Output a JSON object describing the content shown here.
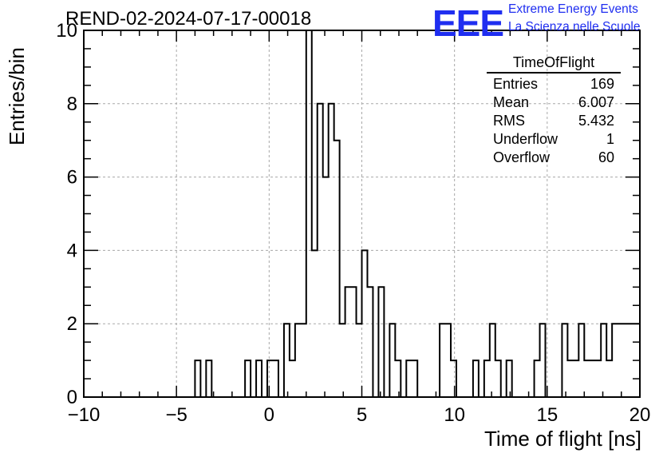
{
  "title": "REND-02-2024-07-17-00018",
  "logo": {
    "text": "EEE",
    "line1": "Extreme Energy Events",
    "line2": "La Scienza nelle Scuole"
  },
  "stats": {
    "name": "TimeOfFlight",
    "rows": [
      {
        "label": "Entries",
        "value": "169"
      },
      {
        "label": "Mean",
        "value": "6.007"
      },
      {
        "label": "RMS",
        "value": "5.432"
      },
      {
        "label": "Underflow",
        "value": "1"
      },
      {
        "label": "Overflow",
        "value": "60"
      }
    ]
  },
  "chart_data": {
    "type": "bar",
    "subtype": "histogram",
    "xlabel": "Time of flight [ns]",
    "ylabel": "Entries/bin",
    "xlim": [
      -10,
      20
    ],
    "ylim": [
      0,
      10
    ],
    "xticks": [
      -10,
      -5,
      0,
      5,
      10,
      15,
      20
    ],
    "xtick_labels": [
      "−10",
      "−5",
      "0",
      "5",
      "10",
      "15",
      "20"
    ],
    "yticks": [
      0,
      2,
      4,
      6,
      8,
      10
    ],
    "grid": true,
    "bin_width": 0.3,
    "bins": [
      {
        "x": -4.0,
        "y": 1
      },
      {
        "x": -3.7,
        "y": 0
      },
      {
        "x": -3.4,
        "y": 1
      },
      {
        "x": -1.3,
        "y": 1
      },
      {
        "x": -1.0,
        "y": 0
      },
      {
        "x": -0.7,
        "y": 1
      },
      {
        "x": -0.4,
        "y": 0
      },
      {
        "x": -0.1,
        "y": 1
      },
      {
        "x": 0.2,
        "y": 1
      },
      {
        "x": 0.5,
        "y": 0
      },
      {
        "x": 0.8,
        "y": 2
      },
      {
        "x": 1.1,
        "y": 1
      },
      {
        "x": 1.4,
        "y": 2
      },
      {
        "x": 1.7,
        "y": 2
      },
      {
        "x": 2.0,
        "y": 10
      },
      {
        "x": 2.3,
        "y": 4
      },
      {
        "x": 2.6,
        "y": 8
      },
      {
        "x": 2.9,
        "y": 6
      },
      {
        "x": 3.2,
        "y": 8
      },
      {
        "x": 3.5,
        "y": 7
      },
      {
        "x": 3.8,
        "y": 2
      },
      {
        "x": 4.1,
        "y": 3
      },
      {
        "x": 4.4,
        "y": 3
      },
      {
        "x": 4.7,
        "y": 2
      },
      {
        "x": 5.0,
        "y": 4
      },
      {
        "x": 5.3,
        "y": 3
      },
      {
        "x": 5.6,
        "y": 0
      },
      {
        "x": 5.9,
        "y": 3
      },
      {
        "x": 6.2,
        "y": 0
      },
      {
        "x": 6.5,
        "y": 2
      },
      {
        "x": 6.8,
        "y": 1
      },
      {
        "x": 7.1,
        "y": 0
      },
      {
        "x": 7.4,
        "y": 1
      },
      {
        "x": 7.7,
        "y": 1
      },
      {
        "x": 9.2,
        "y": 2
      },
      {
        "x": 9.5,
        "y": 2
      },
      {
        "x": 9.8,
        "y": 1
      },
      {
        "x": 11.0,
        "y": 1
      },
      {
        "x": 11.6,
        "y": 1
      },
      {
        "x": 11.9,
        "y": 2
      },
      {
        "x": 12.2,
        "y": 1
      },
      {
        "x": 12.5,
        "y": 0
      },
      {
        "x": 12.8,
        "y": 1
      },
      {
        "x": 14.3,
        "y": 1
      },
      {
        "x": 14.6,
        "y": 2
      },
      {
        "x": 15.8,
        "y": 2
      },
      {
        "x": 16.1,
        "y": 1
      },
      {
        "x": 16.4,
        "y": 1
      },
      {
        "x": 16.7,
        "y": 2
      },
      {
        "x": 17.0,
        "y": 1
      },
      {
        "x": 17.3,
        "y": 1
      },
      {
        "x": 17.6,
        "y": 1
      },
      {
        "x": 17.9,
        "y": 2
      },
      {
        "x": 18.2,
        "y": 1
      },
      {
        "x": 18.5,
        "y": 2
      },
      {
        "x": 18.8,
        "y": 2
      },
      {
        "x": 19.1,
        "y": 2
      },
      {
        "x": 19.4,
        "y": 2
      },
      {
        "x": 19.7,
        "y": 2
      }
    ]
  }
}
